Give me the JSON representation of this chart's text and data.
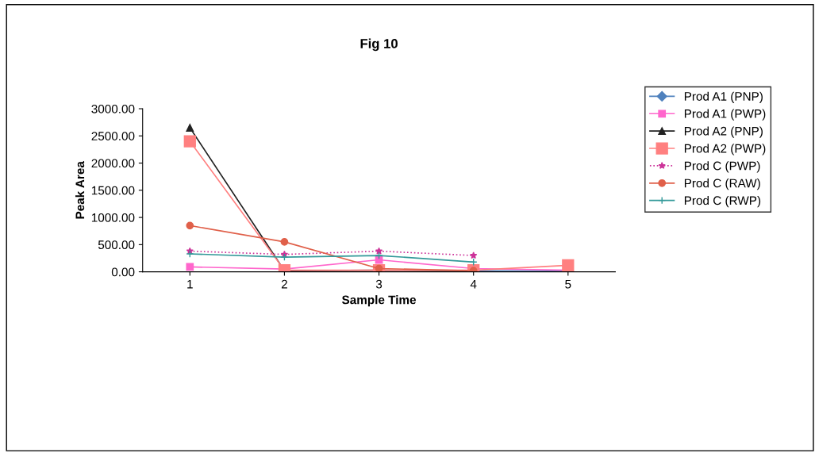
{
  "chart_data": {
    "type": "line",
    "title": "Fig 10",
    "xlabel": "Sample Time",
    "ylabel": "Peak Area",
    "categories": [
      "1",
      "2",
      "3",
      "4",
      "5"
    ],
    "ylim": [
      0,
      3000
    ],
    "yticks": [
      {
        "value": 0,
        "label": "0.00"
      },
      {
        "value": 500,
        "label": "500.00"
      },
      {
        "value": 1000,
        "label": "1000.00"
      },
      {
        "value": 1500,
        "label": "1500.00"
      },
      {
        "value": 2000,
        "label": "2000.00"
      },
      {
        "value": 2500,
        "label": "2500.00"
      },
      {
        "value": 3000,
        "label": "3000.00"
      }
    ],
    "grid": false,
    "legend": "right",
    "series": [
      {
        "name": "Prod A1 (PNP)",
        "color": "#4f81bd",
        "marker": "diamond",
        "line_style": "solid",
        "values": [
          null,
          null,
          null,
          20,
          10
        ]
      },
      {
        "name": "Prod A1 (PWP)",
        "color": "#ff66cc",
        "marker": "square",
        "line_style": "solid",
        "values": [
          90,
          50,
          220,
          60,
          30
        ]
      },
      {
        "name": "Prod A2 (PNP)",
        "color": "#222222",
        "marker": "triangle",
        "line_style": "solid",
        "values": [
          2650,
          20,
          30,
          20,
          null
        ]
      },
      {
        "name": "Prod A2 (PWP)",
        "color": "#ff8080",
        "marker": "square",
        "line_style": "solid",
        "values": [
          2400,
          30,
          30,
          30,
          120
        ]
      },
      {
        "name": "Prod C (PWP)",
        "color": "#cc3399",
        "marker": "star",
        "line_style": "dotted",
        "values": [
          380,
          320,
          380,
          300,
          null
        ]
      },
      {
        "name": "Prod C (RAW)",
        "color": "#e0604a",
        "marker": "circle",
        "line_style": "solid",
        "values": [
          850,
          550,
          60,
          20,
          null
        ]
      },
      {
        "name": "Prod C (RWP)",
        "color": "#339999",
        "marker": "cross",
        "line_style": "solid",
        "values": [
          330,
          270,
          300,
          180,
          null
        ]
      }
    ]
  }
}
